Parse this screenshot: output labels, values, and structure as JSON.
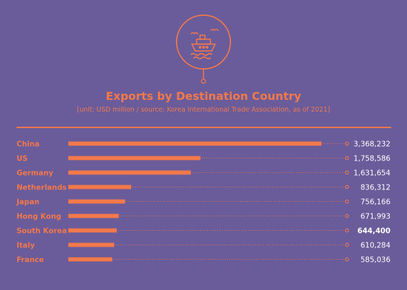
{
  "colors": {
    "background": "#6a5b9a",
    "accent": "#f3784a",
    "value_text": "#ffffff"
  },
  "icon": "ship-with-birds-icon",
  "title": "Exports by Destination Country",
  "subtitle": "[unit: USD million / source: Korea International Trade Association, as of 2021]",
  "chart_data": {
    "type": "bar",
    "orientation": "horizontal",
    "title": "Exports by Destination Country",
    "subtitle": "[unit: USD million / source: Korea International Trade Association, as of 2021]",
    "categories": [
      "China",
      "US",
      "Germany",
      "Netherlands",
      "Japan",
      "Hong Kong",
      "South Korea",
      "Italy",
      "France"
    ],
    "values": [
      3368232,
      1758586,
      1631654,
      836312,
      756166,
      671993,
      644400,
      610284,
      585036
    ],
    "value_labels": [
      "3,368,232",
      "1,758,586",
      "1,631,654",
      "836,312",
      "756,166",
      "671,993",
      "644,400",
      "610,284",
      "585,036"
    ],
    "highlight": "South Korea",
    "xlim": [
      0,
      3368232
    ],
    "grid": false,
    "legend": "none"
  }
}
